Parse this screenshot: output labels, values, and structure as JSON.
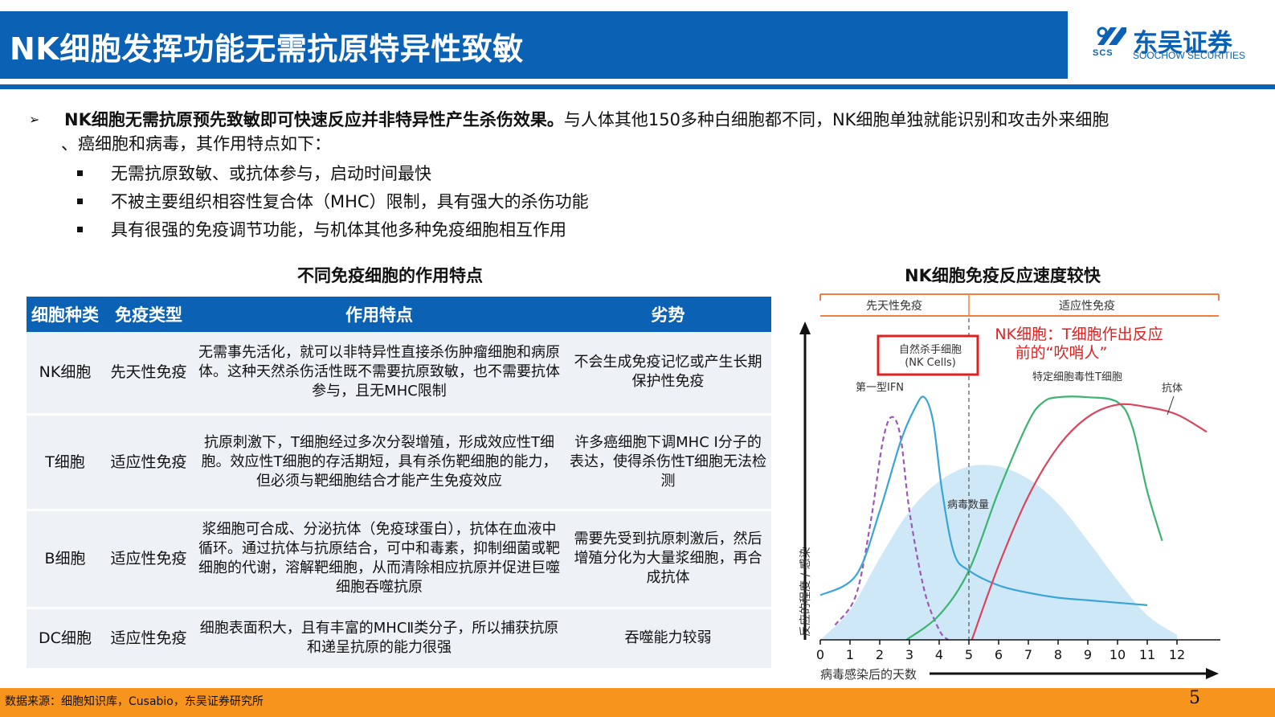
{
  "header": {
    "title": "NK细胞发挥功能无需抗原特异性致敏",
    "logo_cn": "东吴证券",
    "logo_en": "SOOCHOW SECURITIES",
    "logo_abbr": "SCS",
    "colors": {
      "brand_blue": "#0b62b5",
      "footer_orange": "#f7941d"
    }
  },
  "intro": {
    "bold": "NK细胞无需抗原预先致敏即可快速反应并非特异性产生杀伤效果。",
    "rest": "与人体其他150多种白细胞都不同，NK细胞单独就能识别和攻击外来细胞",
    "line2": "、癌细胞和病毒，其作用特点如下：",
    "bullets": [
      "无需抗原致敏、或抗体参与，启动时间最快",
      "不被主要组织相容性复合体（MHC）限制，具有强大的杀伤功能",
      "具有很强的免疫调节功能，与机体其他多种免疫细胞相互作用"
    ]
  },
  "table": {
    "title": "不同免疫细胞的作用特点",
    "headers": [
      "细胞种类",
      "免疫类型",
      "作用特点",
      "劣势"
    ],
    "rows": [
      {
        "cell": "NK细胞",
        "type": "先天性免疫",
        "feature": "无需事先活化，就可以非特异性直接杀伤肿瘤细胞和病原体。这种天然杀伤活性既不需要抗原致敏，也不需要抗体参与，且无MHC限制",
        "weak": "不会生成免疫记忆或产生长期保护性免疫"
      },
      {
        "cell": "T细胞",
        "type": "适应性免疫",
        "feature": "抗原刺激下，T细胞经过多次分裂增殖，形成效应性T细胞。效应性T细胞的存活期短，具有杀伤靶细胞的能力，但必须与靶细胞结合才能产生免疫效应",
        "weak": "许多癌细胞下调MHC I分子的表达，使得杀伤性T细胞无法检测"
      },
      {
        "cell": "B细胞",
        "type": "适应性免疫",
        "feature": "浆细胞可合成、分泌抗体（免疫球蛋白），抗体在血液中循环。通过抗体与抗原结合，可中和毒素，抑制细菌或靶细胞的代谢，溶解靶细胞，从而清除相应抗原并促进巨噬细胞吞噬抗原",
        "weak": "需要先受到抗原刺激后，然后增殖分化为大量浆细胞，再合成抗体"
      },
      {
        "cell": "DC细胞",
        "type": "适应性免疫",
        "feature": "细胞表面积大，且有丰富的MHCⅡ类分子，所以捕获抗原和递呈抗原的能力很强",
        "weak": "吞噬能力较弱"
      }
    ]
  },
  "chart": {
    "title": "NK细胞免疫反应速度较快",
    "band_innate": "先天性免疫",
    "band_adaptive": "适应性免疫",
    "annotation_line1": "NK细胞：T细胞作出反应",
    "annotation_line2": "前的“吹哨人”",
    "ylabel": "反应的程度 / 感染",
    "xlabel": "病毒感染后的天数",
    "label_nk": "自然杀手细胞",
    "label_nk_en": "(NK Cells)",
    "label_ifn": "第一型IFN",
    "label_virus": "病毒数量",
    "label_tcell": "特定细胞毒性T细胞",
    "label_antibody": "抗体"
  },
  "chart_data": {
    "type": "line",
    "title": "NK细胞免疫反应速度较快",
    "xlabel": "病毒感染后的天数",
    "ylabel": "反应的程度 / 感染",
    "x_ticks": [
      0,
      1,
      2,
      3,
      4,
      5,
      6,
      7,
      8,
      9,
      10,
      11,
      12
    ],
    "xlim": [
      0,
      13
    ],
    "ylim": [
      0,
      1
    ],
    "regions": [
      {
        "label": "先天性免疫",
        "x": [
          0,
          5
        ]
      },
      {
        "label": "适应性免疫",
        "x": [
          5,
          13
        ]
      }
    ],
    "series": [
      {
        "name": "病毒数量",
        "kind": "area",
        "color": "#cfe8f7",
        "x": [
          0,
          1,
          2,
          3,
          4,
          5,
          6,
          7,
          8,
          9,
          10,
          11,
          12
        ],
        "y": [
          0.0,
          0.12,
          0.33,
          0.52,
          0.64,
          0.7,
          0.7,
          0.65,
          0.55,
          0.4,
          0.24,
          0.1,
          0.02
        ]
      },
      {
        "name": "第一型IFN",
        "kind": "dashed",
        "color": "#9b59b6",
        "x": [
          0.5,
          1.2,
          1.7,
          2.1,
          2.4,
          2.7,
          3.0,
          3.5,
          4.0,
          4.3
        ],
        "y": [
          0.06,
          0.18,
          0.48,
          0.8,
          0.9,
          0.82,
          0.52,
          0.2,
          0.04,
          0.0
        ]
      },
      {
        "name": "自然杀手细胞",
        "kind": "solid",
        "color": "#3aa4d8",
        "x": [
          0,
          1.2,
          2.0,
          2.7,
          3.2,
          3.5,
          3.8,
          4.1,
          4.5,
          5.0,
          6.0,
          7.0,
          8.0,
          9.0,
          10.0,
          11.0
        ],
        "y": [
          0.18,
          0.26,
          0.52,
          0.8,
          0.94,
          0.98,
          0.88,
          0.6,
          0.35,
          0.28,
          0.22,
          0.19,
          0.17,
          0.16,
          0.15,
          0.14
        ]
      },
      {
        "name": "特定细胞毒性T细胞",
        "kind": "solid",
        "color": "#3cb371",
        "x": [
          2.9,
          4.0,
          5.0,
          6.0,
          7.0,
          7.5,
          8.0,
          9.0,
          10.0,
          10.5,
          11.0,
          11.5
        ],
        "y": [
          0.0,
          0.1,
          0.28,
          0.6,
          0.88,
          0.96,
          0.98,
          0.98,
          0.96,
          0.86,
          0.6,
          0.4
        ]
      },
      {
        "name": "抗体",
        "kind": "solid",
        "color": "#d9455f",
        "x": [
          5.1,
          6.0,
          7.0,
          8.0,
          9.0,
          10.0,
          11.0,
          12.0,
          13.0
        ],
        "y": [
          0.0,
          0.3,
          0.58,
          0.78,
          0.9,
          0.95,
          0.94,
          0.91,
          0.84
        ]
      }
    ],
    "highlight_label": "NK细胞：T细胞作出反应前的“吹哨人”"
  },
  "footer": {
    "source": "数据来源：细胞知识库，Cusabio，东吴证券研究所",
    "page": "5"
  }
}
